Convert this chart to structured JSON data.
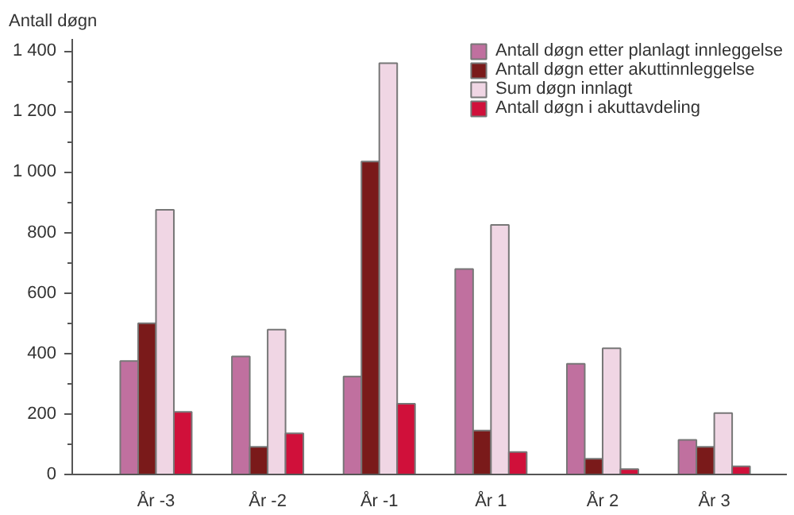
{
  "chart_data": {
    "type": "bar",
    "ylabel": "Antall døgn",
    "categories": [
      "År -3",
      "År -2",
      "År -1",
      "År 1",
      "År 2",
      "År 3"
    ],
    "series": [
      {
        "name": "Antall døgn etter planlagt innleggelse",
        "color": "#c0709f",
        "values": [
          375,
          390,
          324,
          679,
          366,
          114
        ]
      },
      {
        "name": "Antall døgn etter akuttinnleggelse",
        "color": "#7a1a1a",
        "values": [
          500,
          91,
          1035,
          145,
          52,
          91
        ]
      },
      {
        "name": "Sum døgn innlagt",
        "color": "#f0d6e4",
        "values": [
          875,
          479,
          1360,
          825,
          417,
          203
        ]
      },
      {
        "name": "Antall døgn i akuttavdeling",
        "color": "#d0103a",
        "values": [
          207,
          136,
          234,
          74,
          18,
          27
        ]
      }
    ],
    "ylim": [
      0,
      1440
    ],
    "yticks": [
      0,
      200,
      400,
      600,
      800,
      {
        "value": 1000,
        "label": "1 000"
      },
      {
        "value": 1200,
        "label": "1 200"
      },
      {
        "value": 1400,
        "label": "1 400"
      }
    ],
    "grid": false,
    "legend": "top right"
  }
}
